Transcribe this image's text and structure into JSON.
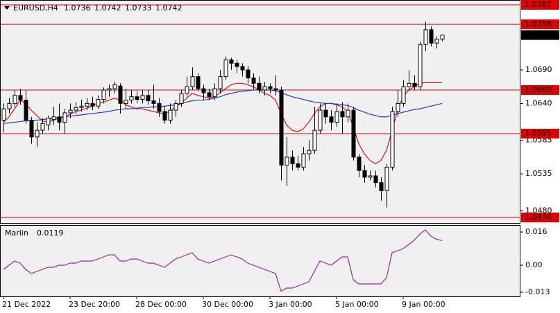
{
  "chart_data": {
    "type": "candlestick",
    "title": "EURUSD,H4",
    "categories": [
      "21 Dec 2022",
      null,
      null,
      null,
      null,
      null,
      null,
      null,
      null,
      null,
      null,
      null,
      "23 Dec 20:00",
      null,
      null,
      null,
      null,
      null,
      null,
      null,
      null,
      null,
      null,
      null,
      "28 Dec 00:00",
      null,
      null,
      null,
      null,
      null,
      null,
      null,
      null,
      null,
      null,
      null,
      "30 Dec 00:00",
      null,
      null,
      null,
      null,
      null,
      null,
      null,
      null,
      null,
      null,
      null,
      "3 Jan 00:00",
      null,
      null,
      null,
      null,
      null,
      null,
      null,
      null,
      null,
      null,
      null,
      "5 Jan 00:00",
      null,
      null,
      null,
      null,
      null,
      null,
      null,
      null,
      null,
      null,
      null,
      "9 Jan 00:00",
      null,
      null,
      null,
      null,
      null,
      null,
      null
    ],
    "series": [
      {
        "up_color": "#ffffff",
        "down_color": "#000000",
        "outline_color": "#000000",
        "open": [
          1.0615,
          1.0632,
          1.064,
          1.0652,
          1.0645,
          1.0615,
          1.059,
          1.06,
          1.0608,
          1.0616,
          1.062,
          1.0612,
          1.0626,
          1.063,
          1.0634,
          1.0636,
          1.064,
          1.0636,
          1.0646,
          1.066,
          1.0662,
          1.0666,
          1.064,
          1.0645,
          1.065,
          1.0646,
          1.0652,
          1.0644,
          1.064,
          1.0628,
          1.0615,
          1.063,
          1.064,
          1.0655,
          1.0665,
          1.068,
          1.0662,
          1.0656,
          1.065,
          1.0662,
          1.068,
          1.0705,
          1.07,
          1.0695,
          1.069,
          1.0678,
          1.067,
          1.066,
          1.0665,
          1.0662,
          1.066,
          1.0548,
          1.056,
          1.055,
          1.0545,
          1.0565,
          1.057,
          1.06,
          1.063,
          1.062,
          1.0612,
          1.0628,
          1.062,
          1.063,
          1.056,
          1.054,
          1.053,
          1.0532,
          1.0522,
          1.051,
          1.0545,
          1.0628,
          1.064,
          1.0665,
          1.067,
          1.0665,
          1.0728,
          1.075,
          1.073,
          1.0736
        ],
        "high": [
          1.064,
          1.0648,
          1.066,
          1.0662,
          1.066,
          1.062,
          1.0612,
          1.0618,
          1.0622,
          1.0635,
          1.064,
          1.0632,
          1.064,
          1.0642,
          1.0646,
          1.0648,
          1.065,
          1.0652,
          1.0664,
          1.0668,
          1.0672,
          1.067,
          1.0662,
          1.066,
          1.0658,
          1.066,
          1.066,
          1.0668,
          1.0648,
          1.0636,
          1.064,
          1.0645,
          1.066,
          1.068,
          1.0694,
          1.0685,
          1.0668,
          1.0662,
          1.067,
          1.069,
          1.071,
          1.0708,
          1.0705,
          1.07,
          1.0696,
          1.0685,
          1.068,
          1.0672,
          1.067,
          1.0682,
          1.0665,
          1.059,
          1.057,
          1.0562,
          1.0575,
          1.0585,
          1.0635,
          1.064,
          1.064,
          1.063,
          1.064,
          1.0642,
          1.064,
          1.0635,
          1.0565,
          1.0548,
          1.054,
          1.054,
          1.053,
          1.055,
          1.0635,
          1.066,
          1.0675,
          1.069,
          1.0682,
          1.0732,
          1.0762,
          1.0755,
          1.074,
          1.0742
        ],
        "low": [
          1.0597,
          1.0625,
          1.0635,
          1.0638,
          1.061,
          1.058,
          1.0575,
          1.0595,
          1.06,
          1.0608,
          1.06,
          1.0595,
          1.0618,
          1.0624,
          1.0628,
          1.063,
          1.063,
          1.0632,
          1.064,
          1.065,
          1.0655,
          1.0625,
          1.0632,
          1.064,
          1.064,
          1.064,
          1.0638,
          1.0632,
          1.062,
          1.061,
          1.061,
          1.062,
          1.0635,
          1.065,
          1.066,
          1.0658,
          1.0645,
          1.0645,
          1.0645,
          1.0655,
          1.0675,
          1.069,
          1.0685,
          1.068,
          1.067,
          1.066,
          1.0655,
          1.0652,
          1.0655,
          1.0652,
          1.0525,
          1.0517,
          1.054,
          1.054,
          1.054,
          1.0555,
          1.0565,
          1.0595,
          1.061,
          1.06,
          1.0605,
          1.0595,
          1.0612,
          1.0555,
          1.053,
          1.0522,
          1.0525,
          1.0515,
          1.0495,
          1.0485,
          1.054,
          1.062,
          1.0635,
          1.066,
          1.066,
          1.066,
          1.0718,
          1.0725,
          1.0722,
          1.0733
        ],
        "close": [
          1.0632,
          1.064,
          1.0652,
          1.0645,
          1.0615,
          1.059,
          1.06,
          1.061,
          1.0618,
          1.062,
          1.0612,
          1.0626,
          1.063,
          1.0634,
          1.0636,
          1.064,
          1.0636,
          1.0646,
          1.066,
          1.0662,
          1.0668,
          1.064,
          1.0645,
          1.065,
          1.0646,
          1.0652,
          1.0644,
          1.064,
          1.0628,
          1.0615,
          1.063,
          1.064,
          1.0655,
          1.0665,
          1.068,
          1.0662,
          1.0656,
          1.065,
          1.0662,
          1.068,
          1.0705,
          1.07,
          1.0695,
          1.069,
          1.0678,
          1.067,
          1.066,
          1.0665,
          1.0662,
          1.066,
          1.0548,
          1.056,
          1.055,
          1.0545,
          1.0565,
          1.057,
          1.06,
          1.063,
          1.062,
          1.0612,
          1.0628,
          1.062,
          1.063,
          1.056,
          1.054,
          1.053,
          1.0532,
          1.0522,
          1.051,
          1.0545,
          1.0628,
          1.064,
          1.0665,
          1.067,
          1.0665,
          1.0728,
          1.075,
          1.073,
          1.0736,
          1.0742
        ]
      }
    ],
    "lines": [
      {
        "color": "#e01010",
        "values": [
          1.0612,
          1.062,
          1.0632,
          1.0645,
          1.064,
          1.063,
          1.0622,
          1.0614,
          1.0612,
          1.0615,
          1.0618,
          1.062,
          1.0624,
          1.0628,
          1.063,
          1.0633,
          1.0636,
          1.064,
          1.0642,
          1.0645,
          1.0648,
          1.0645,
          1.0638,
          1.0635,
          1.0632,
          1.0632,
          1.063,
          1.0628,
          1.0626,
          1.0625,
          1.0628,
          1.0635,
          1.064,
          1.0648,
          1.0655,
          1.0652,
          1.065,
          1.0648,
          1.065,
          1.0656,
          1.0662,
          1.0668,
          1.067,
          1.067,
          1.0668,
          1.0665,
          1.066,
          1.0655,
          1.0652,
          1.0645,
          1.0625,
          1.0608,
          1.06,
          1.0598,
          1.0602,
          1.0612,
          1.0625,
          1.0635,
          1.064,
          1.064,
          1.0638,
          1.0635,
          1.0628,
          1.0605,
          1.058,
          1.0565,
          1.0555,
          1.055,
          1.0555,
          1.057,
          1.06,
          1.063,
          1.065,
          1.066,
          1.0665,
          1.067,
          1.0671,
          1.0671,
          1.0671,
          1.0671
        ]
      },
      {
        "color": "#1c3fc4",
        "values": [
          1.061,
          1.0611,
          1.0612,
          1.0613,
          1.0614,
          1.0614,
          1.0615,
          1.0616,
          1.0617,
          1.0618,
          1.0619,
          1.062,
          1.0621,
          1.0622,
          1.0623,
          1.0624,
          1.0625,
          1.0626,
          1.0627,
          1.0628,
          1.063,
          1.0631,
          1.0632,
          1.0632,
          1.0633,
          1.0634,
          1.0634,
          1.0635,
          1.0635,
          1.0636,
          1.0637,
          1.0638,
          1.064,
          1.0642,
          1.0644,
          1.0645,
          1.0645,
          1.0646,
          1.0648,
          1.065,
          1.0653,
          1.0655,
          1.0657,
          1.0658,
          1.0659,
          1.066,
          1.066,
          1.066,
          1.066,
          1.0659,
          1.0656,
          1.0653,
          1.065,
          1.0648,
          1.0646,
          1.0644,
          1.0642,
          1.0641,
          1.064,
          1.064,
          1.0639,
          1.0638,
          1.0637,
          1.0634,
          1.063,
          1.0627,
          1.0624,
          1.0622,
          1.062,
          1.062,
          1.0622,
          1.0625,
          1.0627,
          1.0629,
          1.0631,
          1.0632,
          1.0634,
          1.0636,
          1.0638,
          1.064
        ]
      }
    ],
    "levels": [
      {
        "value": 1.0787,
        "label": "1.0787"
      },
      {
        "value": 1.0758,
        "label": "1.0758"
      },
      {
        "value": 1.066,
        "label": "1.0660"
      },
      {
        "value": 1.0595,
        "label": "1.0595"
      },
      {
        "value": 1.047,
        "label": "1.0470"
      }
    ],
    "level_color": "#e00000",
    "ylim": [
      1.04618,
      1.07932
    ],
    "yticks": [
      {
        "value": 1.069,
        "label": "1.0690"
      },
      {
        "value": 1.064,
        "label": "1.0640"
      },
      1.0585,
      1.0535,
      {
        "value": 1.048,
        "label": "1.0480"
      }
    ],
    "indicator": {
      "type": "line",
      "name": "Marlin",
      "color": "#a020a0",
      "values": [
        -0.002,
        0.0,
        0.002,
        0.001,
        -0.002,
        -0.004,
        -0.003,
        -0.002,
        -0.001,
        -0.001,
        0.0,
        0.0,
        0.001,
        0.001,
        0.002,
        0.002,
        0.002,
        0.003,
        0.004,
        0.005,
        0.005,
        0.002,
        0.002,
        0.003,
        0.003,
        0.002,
        0.001,
        0.001,
        0.0,
        -0.001,
        0.001,
        0.003,
        0.004,
        0.005,
        0.006,
        0.003,
        0.002,
        0.001,
        0.002,
        0.003,
        0.004,
        0.005,
        0.004,
        0.003,
        0.001,
        0.0,
        -0.001,
        -0.002,
        -0.003,
        -0.004,
        -0.0125,
        -0.011,
        -0.011,
        -0.01,
        -0.009,
        -0.008,
        -0.003,
        0.002,
        0.001,
        0.0,
        0.002,
        0.004,
        0.004,
        -0.007,
        -0.009,
        -0.009,
        -0.009,
        -0.009,
        -0.009,
        -0.006,
        0.006,
        0.007,
        0.008,
        0.01,
        0.012,
        0.015,
        0.017,
        0.014,
        0.0125,
        0.0119
      ],
      "ylim": [
        -0.015,
        0.019
      ],
      "yticks": [
        0.016,
        {
          "value": 0,
          "label": "0.00"
        },
        -0.013
      ]
    }
  }
}
